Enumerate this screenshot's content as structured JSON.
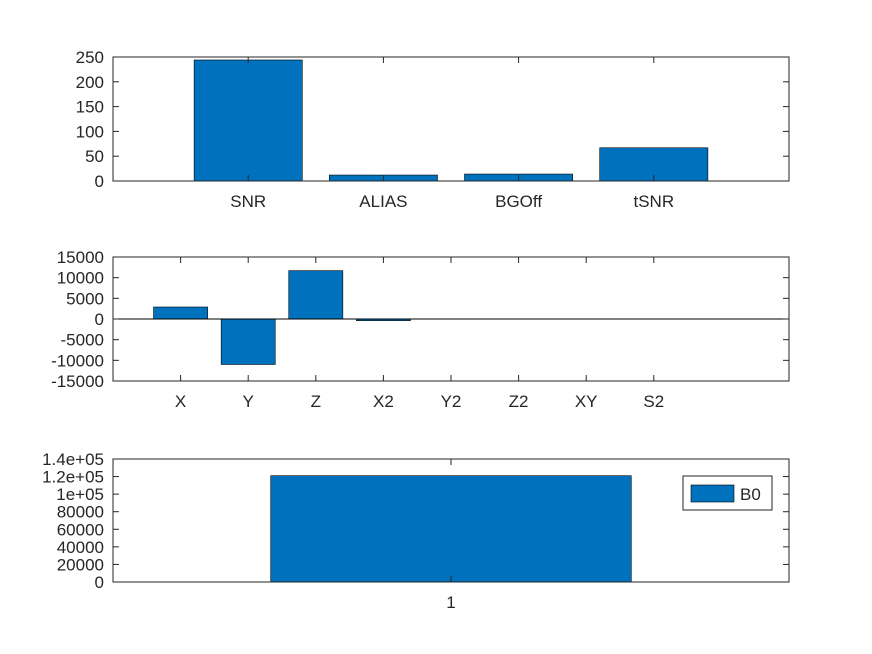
{
  "figure": {
    "background": "#ffffff"
  },
  "chart_data": [
    {
      "type": "bar",
      "categories": [
        "SNR",
        "ALIAS",
        "BGOff",
        "tSNR"
      ],
      "values": [
        244,
        12,
        14,
        67
      ],
      "xlim": [
        0.0,
        5.0
      ],
      "ylim": [
        0,
        250
      ],
      "yticks": [
        0,
        50,
        100,
        150,
        200,
        250
      ],
      "yticklabels": [
        "0",
        "50",
        "100",
        "150",
        "200",
        "250"
      ],
      "grid": false,
      "bar_color": "#0072BD"
    },
    {
      "type": "bar",
      "categories": [
        "X",
        "Y",
        "Z",
        "X2",
        "Y2",
        "Z2",
        "XY",
        "S2"
      ],
      "values": [
        2900,
        -11000,
        11700,
        -400,
        0,
        0,
        0,
        0
      ],
      "xlim": [
        0.0,
        10.0
      ],
      "ylim": [
        -15000,
        15000
      ],
      "yticks": [
        -15000,
        -10000,
        -5000,
        0,
        5000,
        10000,
        15000
      ],
      "yticklabels": [
        "-15000",
        "-10000",
        "-5000",
        "0",
        "5000",
        "10000",
        "15000"
      ],
      "grid": false,
      "bar_color": "#0072BD"
    },
    {
      "type": "bar",
      "categories": [
        "1"
      ],
      "series": [
        {
          "name": "B0",
          "values": [
            121000
          ]
        }
      ],
      "xlim": [
        0.25,
        1.75
      ],
      "ylim": [
        0,
        140000
      ],
      "yticks": [
        0,
        20000,
        40000,
        60000,
        80000,
        100000,
        120000,
        140000
      ],
      "yticklabels": [
        "0",
        "20000",
        "40000",
        "60000",
        "80000",
        "1e+05",
        "1.2e+05",
        "1.4e+05"
      ],
      "legend": "top-right",
      "grid": false,
      "bar_color": "#0072BD"
    }
  ]
}
